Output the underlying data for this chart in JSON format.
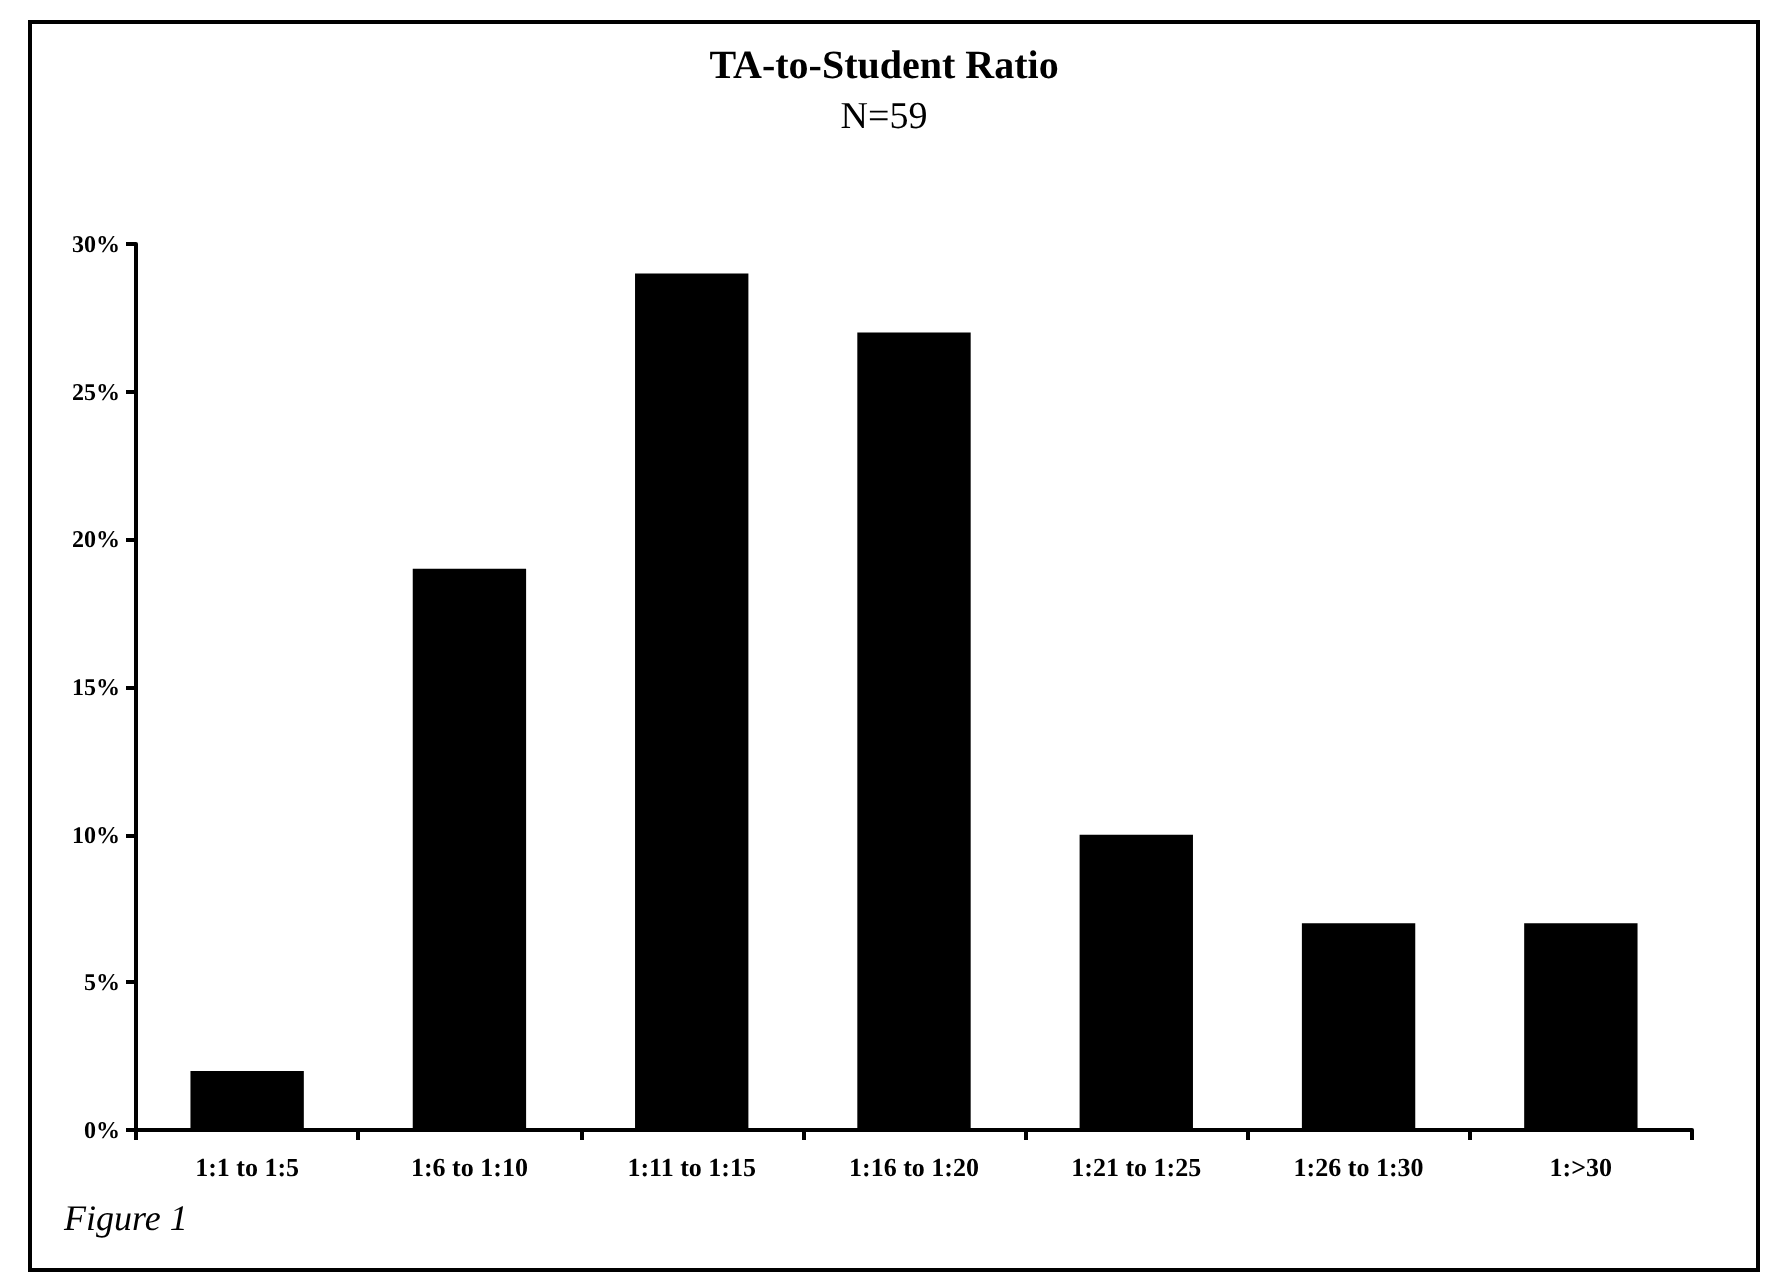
{
  "chart_data": {
    "type": "bar",
    "title": "TA-to-Student Ratio",
    "subtitle": "N=59",
    "categories": [
      "1:1 to 1:5",
      "1:6 to 1:10",
      "1:11 to 1:15",
      "1:16 to 1:20",
      "1:21 to 1:25",
      "1:26 to 1:30",
      "1:>30"
    ],
    "values": [
      2,
      19,
      29,
      27,
      10,
      7,
      7
    ],
    "color": "#000000",
    "ylim": [
      0,
      30
    ],
    "yticks": [
      {
        "value": 0,
        "label": "0%"
      },
      {
        "value": 5,
        "label": "5%"
      },
      {
        "value": 10,
        "label": "10%"
      },
      {
        "value": 15,
        "label": "15%"
      },
      {
        "value": 20,
        "label": "20%"
      },
      {
        "value": 25,
        "label": "25%"
      },
      {
        "value": 30,
        "label": "30%"
      }
    ],
    "grid": false,
    "annotations": [
      "Figure 1"
    ]
  }
}
